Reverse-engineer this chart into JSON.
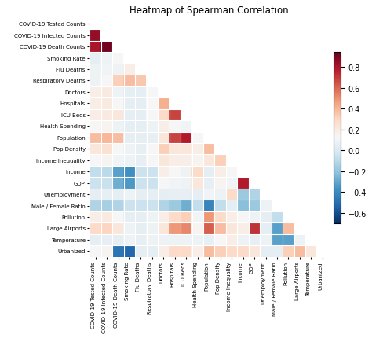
{
  "labels": [
    "COVID-19 Tested Counts",
    "COVID-19 Infected Counts",
    "COVID-19 Death Counts",
    "Smoking Rate",
    "Flu Deaths",
    "Respiratory Deaths",
    "Doctors",
    "Hospitals",
    "ICU Beds",
    "Health Spending",
    "Population",
    "Pop Density",
    "Income Inequality",
    "Income",
    "GDP",
    "Unemployment",
    "Male / Female Ratio",
    "Pollution",
    "Large Airports",
    "Temperature",
    "Urbanized"
  ],
  "title": "Heatmap of Spearman Correlation",
  "vmin": -0.7,
  "vmax": 0.95,
  "colorbar_ticks": [
    0.8,
    0.6,
    0.4,
    0.2,
    0.0,
    -0.2,
    -0.4,
    -0.6
  ],
  "matrix": [
    [
      0.0,
      0.0,
      0.0,
      0.0,
      0.0,
      0.0,
      0.0,
      0.0,
      0.0,
      0.0,
      0.0,
      0.0,
      0.0,
      0.0,
      0.0,
      0.0,
      0.0,
      0.0,
      0.0,
      0.0,
      0.0
    ],
    [
      0.85,
      0.0,
      0.0,
      0.0,
      0.0,
      0.0,
      0.0,
      0.0,
      0.0,
      0.0,
      0.0,
      0.0,
      0.0,
      0.0,
      0.0,
      0.0,
      0.0,
      0.0,
      0.0,
      0.0,
      0.0
    ],
    [
      0.8,
      0.92,
      0.0,
      0.0,
      0.0,
      0.0,
      0.0,
      0.0,
      0.0,
      0.0,
      0.0,
      0.0,
      0.0,
      0.0,
      0.0,
      0.0,
      0.0,
      0.0,
      0.0,
      0.0,
      0.0
    ],
    [
      0.05,
      0.08,
      0.12,
      0.0,
      0.0,
      0.0,
      0.0,
      0.0,
      0.0,
      0.0,
      0.0,
      0.0,
      0.0,
      0.0,
      0.0,
      0.0,
      0.0,
      0.0,
      0.0,
      0.0,
      0.0
    ],
    [
      0.08,
      0.1,
      0.08,
      0.18,
      0.0,
      0.0,
      0.0,
      0.0,
      0.0,
      0.0,
      0.0,
      0.0,
      0.0,
      0.0,
      0.0,
      0.0,
      0.0,
      0.0,
      0.0,
      0.0,
      0.0
    ],
    [
      0.08,
      0.12,
      0.32,
      0.38,
      0.35,
      0.0,
      0.0,
      0.0,
      0.0,
      0.0,
      0.0,
      0.0,
      0.0,
      0.0,
      0.0,
      0.0,
      0.0,
      0.0,
      0.0,
      0.0,
      0.0
    ],
    [
      0.18,
      0.2,
      0.08,
      0.05,
      0.05,
      0.12,
      0.0,
      0.0,
      0.0,
      0.0,
      0.0,
      0.0,
      0.0,
      0.0,
      0.0,
      0.0,
      0.0,
      0.0,
      0.0,
      0.0,
      0.0
    ],
    [
      0.18,
      0.2,
      0.12,
      0.05,
      0.05,
      0.12,
      0.42,
      0.0,
      0.0,
      0.0,
      0.0,
      0.0,
      0.0,
      0.0,
      0.0,
      0.0,
      0.0,
      0.0,
      0.0,
      0.0,
      0.0
    ],
    [
      0.18,
      0.2,
      0.22,
      0.05,
      0.05,
      0.12,
      0.28,
      0.68,
      0.0,
      0.0,
      0.0,
      0.0,
      0.0,
      0.0,
      0.0,
      0.0,
      0.0,
      0.0,
      0.0,
      0.0,
      0.0
    ],
    [
      0.12,
      0.15,
      0.08,
      0.05,
      0.05,
      0.08,
      0.18,
      0.12,
      0.1,
      0.0,
      0.0,
      0.0,
      0.0,
      0.0,
      0.0,
      0.0,
      0.0,
      0.0,
      0.0,
      0.0,
      0.0
    ],
    [
      0.38,
      0.4,
      0.38,
      0.05,
      0.05,
      0.06,
      0.22,
      0.68,
      0.78,
      0.12,
      0.0,
      0.0,
      0.0,
      0.0,
      0.0,
      0.0,
      0.0,
      0.0,
      0.0,
      0.0,
      0.0
    ],
    [
      0.22,
      0.25,
      0.12,
      0.08,
      0.06,
      0.12,
      0.32,
      0.22,
      0.22,
      0.18,
      0.38,
      0.0,
      0.0,
      0.0,
      0.0,
      0.0,
      0.0,
      0.0,
      0.0,
      0.0,
      0.0
    ],
    [
      0.12,
      0.15,
      0.1,
      0.08,
      0.06,
      0.12,
      0.22,
      0.18,
      0.18,
      0.15,
      0.22,
      0.32,
      0.0,
      0.0,
      0.0,
      0.0,
      0.0,
      0.0,
      0.0,
      0.0,
      0.0
    ],
    [
      -0.08,
      -0.1,
      -0.32,
      -0.38,
      -0.05,
      -0.05,
      0.18,
      0.12,
      0.08,
      0.28,
      0.05,
      0.18,
      0.12,
      0.0,
      0.0,
      0.0,
      0.0,
      0.0,
      0.0,
      0.0,
      0.0
    ],
    [
      -0.05,
      -0.06,
      -0.28,
      -0.35,
      -0.05,
      -0.05,
      0.12,
      0.1,
      0.08,
      0.22,
      0.06,
      0.15,
      0.1,
      0.78,
      0.0,
      0.0,
      0.0,
      0.0,
      0.0,
      0.0,
      0.0
    ],
    [
      0.05,
      0.06,
      0.05,
      0.08,
      0.05,
      0.05,
      0.05,
      0.06,
      0.06,
      0.05,
      0.1,
      0.08,
      0.28,
      -0.18,
      -0.12,
      0.0,
      0.0,
      0.0,
      0.0,
      0.0,
      0.0
    ],
    [
      -0.12,
      -0.15,
      -0.12,
      -0.05,
      -0.05,
      -0.05,
      -0.12,
      -0.18,
      -0.28,
      -0.08,
      -0.42,
      -0.08,
      0.05,
      -0.22,
      -0.18,
      0.08,
      0.0,
      0.0,
      0.0,
      0.0,
      0.0
    ],
    [
      0.18,
      0.2,
      0.12,
      0.05,
      0.05,
      0.08,
      0.18,
      0.28,
      0.32,
      0.1,
      0.48,
      0.28,
      0.18,
      0.12,
      0.08,
      0.05,
      -0.08,
      0.0,
      0.0,
      0.0,
      0.0
    ],
    [
      0.28,
      0.3,
      0.22,
      0.08,
      0.05,
      0.08,
      0.22,
      0.48,
      0.52,
      0.15,
      0.62,
      0.38,
      0.22,
      0.18,
      0.72,
      0.05,
      -0.32,
      0.38,
      0.0,
      0.0,
      0.0
    ],
    [
      0.05,
      0.06,
      0.05,
      0.08,
      0.06,
      0.08,
      0.08,
      0.08,
      0.08,
      0.08,
      0.06,
      0.12,
      0.18,
      0.08,
      0.06,
      0.08,
      -0.32,
      -0.32,
      0.08,
      0.0,
      0.0
    ],
    [
      0.12,
      0.15,
      -0.48,
      -0.52,
      0.05,
      0.05,
      0.18,
      0.28,
      0.28,
      0.18,
      0.38,
      0.32,
      0.28,
      0.28,
      0.22,
      0.05,
      0.05,
      0.32,
      0.38,
      0.22,
      0.0
    ]
  ]
}
